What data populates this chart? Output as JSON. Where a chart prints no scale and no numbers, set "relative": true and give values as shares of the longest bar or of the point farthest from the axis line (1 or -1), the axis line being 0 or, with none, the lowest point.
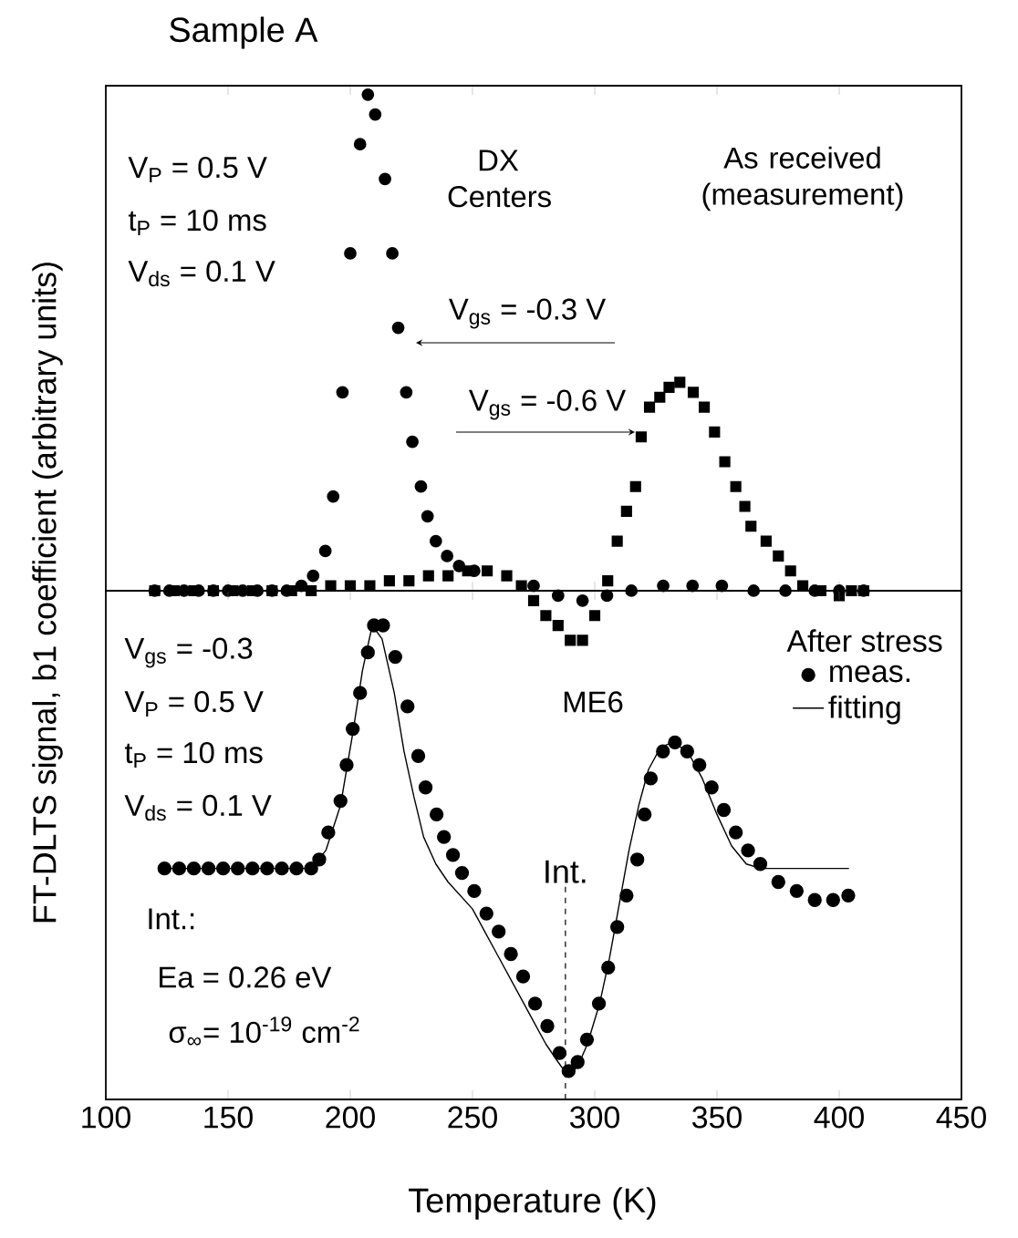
{
  "chart_data": [
    {
      "type": "scatter",
      "title": "Sample A",
      "ylabel": "FT-DLTS signal, b1 coefficient  (arbitrary units)",
      "relative": true,
      "xlim": [
        100,
        450
      ],
      "xticks": [
        100,
        150,
        200,
        250,
        300,
        350,
        400,
        450
      ],
      "tick_labels": false,
      "annotations": [
        "V$_{P}$ = 0.5 V",
        "t$_{P}$ = 10 ms",
        "V$_{ds}$ = 0.1 V",
        "DX Centers",
        "As received (measurement)"
      ],
      "series": [
        {
          "name": "V$_{gs}$ = -0.3 V",
          "color": "#000000",
          "marker": "circle",
          "x": [
            120,
            126,
            132,
            138,
            144,
            150,
            156,
            162,
            168,
            174,
            180,
            184.8,
            189.8,
            193,
            196.8,
            200,
            204,
            207.2,
            210.2,
            214.2,
            217.2,
            219.6,
            222.9,
            225.4,
            228.9,
            231.6,
            235,
            239.6,
            244.5,
            250.7,
            256.7,
            265,
            275,
            285,
            295,
            305,
            315,
            328,
            340,
            352,
            365,
            378,
            390,
            400,
            410
          ],
          "values": [
            0,
            0,
            0,
            0,
            0,
            0,
            0,
            0,
            0,
            0,
            0.01,
            0.03,
            0.08,
            0.19,
            0.4,
            0.68,
            0.9,
            1,
            0.96,
            0.83,
            0.68,
            0.53,
            0.4,
            0.3,
            0.21,
            0.15,
            0.1,
            0.07,
            0.05,
            0.04,
            null,
            null,
            0.01,
            -0.01,
            -0.02,
            -0.01,
            0,
            0.01,
            0.01,
            0.01,
            0,
            0,
            0,
            0,
            0
          ]
        },
        {
          "name": "V$_{gs}$ = -0.6 V",
          "color": "#000000",
          "marker": "square",
          "x": [
            120,
            128,
            136,
            144,
            152,
            160,
            168,
            176,
            184,
            192,
            200,
            208,
            216,
            224,
            232,
            240,
            248,
            256,
            264,
            270,
            275,
            280,
            285,
            290,
            295,
            300,
            305.3,
            309.2,
            313,
            316.7,
            319,
            322.4,
            326.6,
            330.4,
            334.8,
            340.3,
            344.8,
            349,
            353.2,
            357.7,
            361.4,
            363.9,
            370.1,
            375.1,
            380.1,
            385.1,
            392.5,
            400,
            405,
            410
          ],
          "values": [
            0,
            0,
            0,
            0,
            0,
            0,
            0,
            0,
            0,
            0.01,
            0.01,
            0.01,
            0.02,
            0.02,
            0.03,
            0.03,
            0.04,
            0.04,
            0.03,
            0.01,
            -0.02,
            -0.05,
            -0.07,
            -0.1,
            -0.1,
            -0.05,
            0.02,
            0.1,
            0.16,
            0.21,
            0.31,
            0.37,
            0.39,
            0.41,
            0.42,
            0.4,
            0.37,
            0.32,
            0.26,
            0.21,
            0.17,
            0.13,
            0.1,
            0.07,
            0.04,
            0.01,
            0,
            -0.01,
            0,
            0
          ]
        }
      ]
    },
    {
      "type": "scatter",
      "xlabel": "Temperature  (K)",
      "relative": true,
      "xlim": [
        100,
        450
      ],
      "xticks": [
        100,
        150,
        200,
        250,
        300,
        350,
        400,
        450
      ],
      "tick_labels": "x",
      "legend": "top right",
      "legend_title": "After stress",
      "annotations": [
        "V$_{gs}$ = -0.3",
        "V$_{P}$ = 0.5 V",
        "t$_{P}$ = 10 ms",
        "V$_{ds}$ = 0.1 V",
        "ME6",
        "Int.:",
        "Ea = 0.26 eV",
        "σ$_{∞}$= 10$^{-19}$ cm$^{-2}$"
      ],
      "ref_lines": [
        {
          "axis": "x",
          "value": 288,
          "label": "Int.",
          "line_style": "dashed"
        }
      ],
      "series": [
        {
          "name": "meas.",
          "color": "#000000",
          "marker": "circle",
          "x": [
            124,
            130,
            136,
            142,
            148,
            154,
            160,
            166,
            172,
            178,
            184,
            187.3,
            191,
            196,
            198.5,
            201,
            204,
            207.2,
            209.7,
            213.4,
            218.4,
            223.4,
            227.8,
            230.8,
            235.3,
            238.3,
            242,
            245.7,
            250.7,
            255.7,
            260.7,
            265.7,
            270.7,
            275.6,
            280.6,
            285.6,
            289.3,
            293,
            296.8,
            301.7,
            305.5,
            309.2,
            313,
            317.4,
            320.4,
            322.9,
            327.9,
            332.8,
            337.8,
            342.8,
            347.8,
            352.8,
            357.7,
            362.7,
            367.7,
            375.1,
            382.6,
            390,
            397.5,
            403.7
          ],
          "values": [
            0.46,
            0.46,
            0.46,
            0.46,
            0.46,
            0.46,
            0.46,
            0.46,
            0.46,
            0.46,
            0.46,
            0.48,
            0.54,
            0.61,
            0.69,
            0.77,
            0.85,
            0.94,
            1,
            1,
            0.93,
            0.82,
            0.71,
            0.64,
            0.58,
            0.53,
            0.49,
            0.45,
            0.41,
            0.36,
            0.32,
            0.27,
            0.22,
            0.16,
            0.11,
            0.05,
            0.01,
            0.03,
            0.08,
            0.16,
            0.24,
            0.33,
            0.4,
            0.48,
            0.58,
            0.66,
            0.72,
            0.74,
            0.72,
            0.69,
            0.64,
            0.59,
            0.54,
            0.5,
            0.47,
            0.43,
            0.41,
            0.39,
            0.39,
            0.4
          ]
        },
        {
          "name": "fitting",
          "type": "line",
          "color": "#000000",
          "marker": "none",
          "x": [
            124,
            184,
            190,
            196,
            201,
            205,
            209,
            213,
            218,
            222,
            226,
            230,
            235,
            240,
            245,
            250,
            255,
            260,
            265,
            270,
            275,
            280,
            285,
            289,
            293,
            297,
            302,
            306,
            310,
            314,
            318,
            322,
            327,
            332,
            338,
            344,
            350,
            356,
            362,
            368,
            375,
            385,
            395,
            404
          ],
          "values": [
            0.46,
            0.46,
            0.5,
            0.6,
            0.76,
            0.9,
            1,
            0.97,
            0.85,
            0.72,
            0.62,
            0.53,
            0.47,
            0.43,
            0.4,
            0.37,
            0.32,
            0.27,
            0.22,
            0.17,
            0.12,
            0.07,
            0.03,
            0,
            0.02,
            0.07,
            0.16,
            0.26,
            0.38,
            0.5,
            0.6,
            0.68,
            0.73,
            0.74,
            0.72,
            0.66,
            0.58,
            0.51,
            0.47,
            0.46,
            0.46,
            0.46,
            0.46,
            0.46
          ]
        }
      ]
    }
  ]
}
